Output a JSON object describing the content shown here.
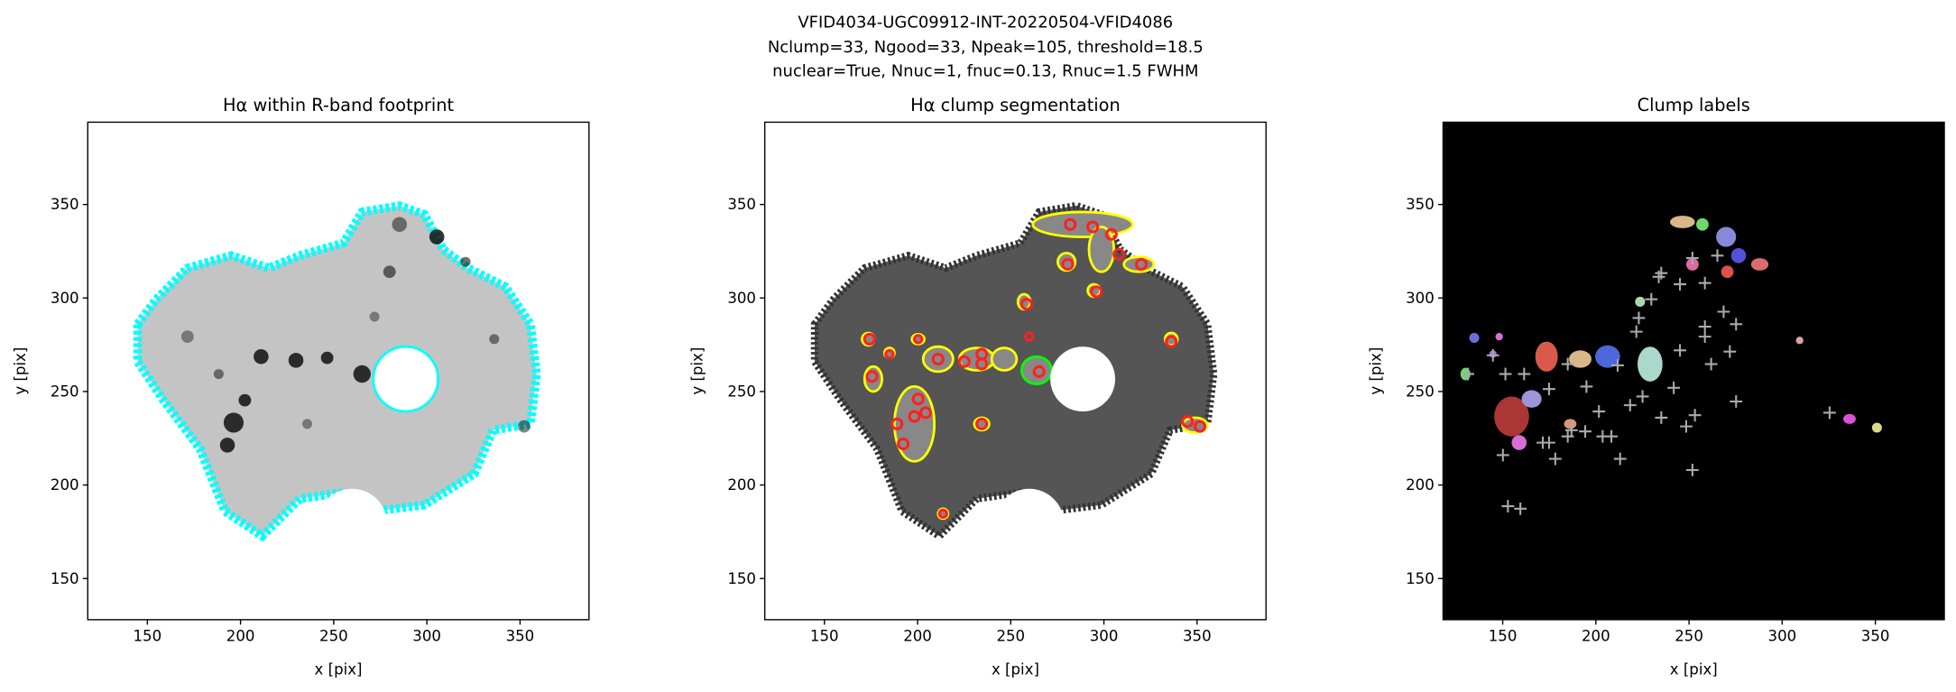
{
  "figure_title": [
    "VFID4034-UGC09912-INT-20220504-VFID4086",
    "Nclump=33, Ngood=33, Npeak=105, threshold=18.5",
    "nuclear=True, Nnuc=1, fnuc=0.13, Rnuc=1.5 FWHM"
  ],
  "chart_data": [
    {
      "type": "image",
      "title": "Hα within R-band footprint",
      "xlabel": "x [pix]",
      "ylabel": "y [pix]",
      "xlim": [
        118,
        387
      ],
      "ylim": [
        128,
        394
      ],
      "xticks": [
        150,
        200,
        250,
        300,
        350
      ],
      "yticks": [
        150,
        200,
        250,
        300,
        350
      ]
    },
    {
      "type": "image",
      "title": "Hα clump segmentation",
      "xlabel": "x [pix]",
      "ylabel": "y [pix]",
      "xlim": [
        118,
        387
      ],
      "ylim": [
        128,
        394
      ],
      "xticks": [
        150,
        200,
        250,
        300,
        350
      ],
      "yticks": [
        150,
        200,
        250,
        300,
        350
      ]
    },
    {
      "type": "image",
      "title": "Clump labels",
      "xlabel": "x [pix]",
      "ylabel": "y [pix]",
      "xlim": [
        118,
        387
      ],
      "ylim": [
        128,
        394
      ],
      "xticks": [
        150,
        200,
        250,
        300,
        350
      ],
      "yticks": [
        150,
        200,
        250,
        300,
        350
      ]
    }
  ]
}
